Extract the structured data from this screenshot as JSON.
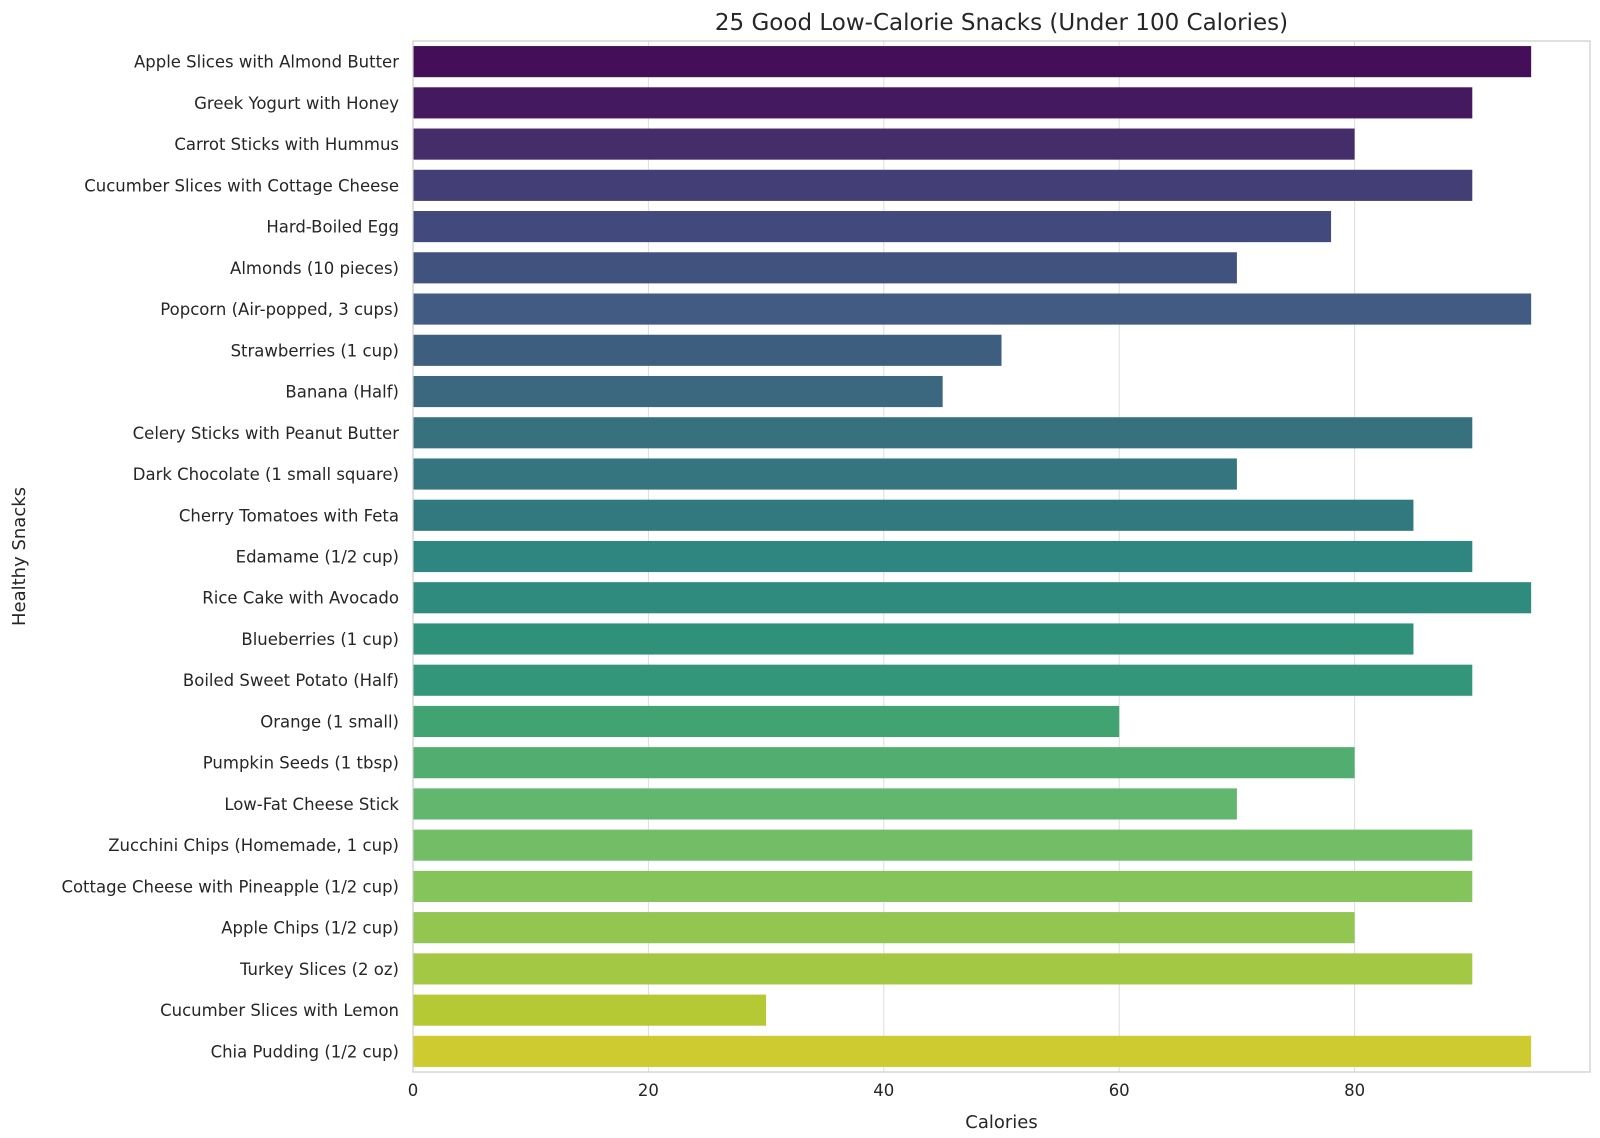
{
  "chart_data": {
    "type": "bar",
    "orientation": "horizontal",
    "title": "25 Good Low-Calorie Snacks (Under 100 Calories)",
    "xlabel": "Calories",
    "ylabel": "Healthy Snacks",
    "xlim": [
      0,
      100
    ],
    "xticks": [
      0,
      20,
      40,
      60,
      80
    ],
    "grid": true,
    "palette": "viridis",
    "categories": [
      "Apple Slices with Almond Butter",
      "Greek Yogurt with Honey",
      "Carrot Sticks with Hummus",
      "Cucumber Slices with Cottage Cheese",
      "Hard-Boiled Egg",
      "Almonds (10 pieces)",
      "Popcorn (Air-popped, 3 cups)",
      "Strawberries (1 cup)",
      "Banana (Half)",
      "Celery Sticks with Peanut Butter",
      "Dark Chocolate (1 small square)",
      "Cherry Tomatoes with Feta",
      "Edamame (1/2 cup)",
      "Rice Cake with Avocado",
      "Blueberries (1 cup)",
      "Boiled Sweet Potato (Half)",
      "Orange (1 small)",
      "Pumpkin Seeds (1 tbsp)",
      "Low-Fat Cheese Stick",
      "Zucchini Chips (Homemade, 1 cup)",
      "Cottage Cheese with Pineapple (1/2 cup)",
      "Apple Chips (1/2 cup)",
      "Turkey Slices (2 oz)",
      "Cucumber Slices with Lemon",
      "Chia Pudding (1/2 cup)"
    ],
    "values": [
      95,
      90,
      80,
      90,
      78,
      70,
      95,
      50,
      45,
      90,
      70,
      85,
      90,
      95,
      85,
      90,
      60,
      80,
      70,
      90,
      90,
      80,
      90,
      30,
      95
    ],
    "colors": [
      "#440f58",
      "#45195f",
      "#442d69",
      "#433e75",
      "#424a7d",
      "#42527e",
      "#415b83",
      "#3e5e80",
      "#3c687f",
      "#38717e",
      "#357580",
      "#31787f",
      "#2f8680",
      "#2e8b7e",
      "#2f9179",
      "#33967a",
      "#40a371",
      "#52ae70",
      "#63b66e",
      "#73bd67",
      "#84c45b",
      "#93c551",
      "#a3c843",
      "#b4c934",
      "#cdcb2f"
    ]
  }
}
